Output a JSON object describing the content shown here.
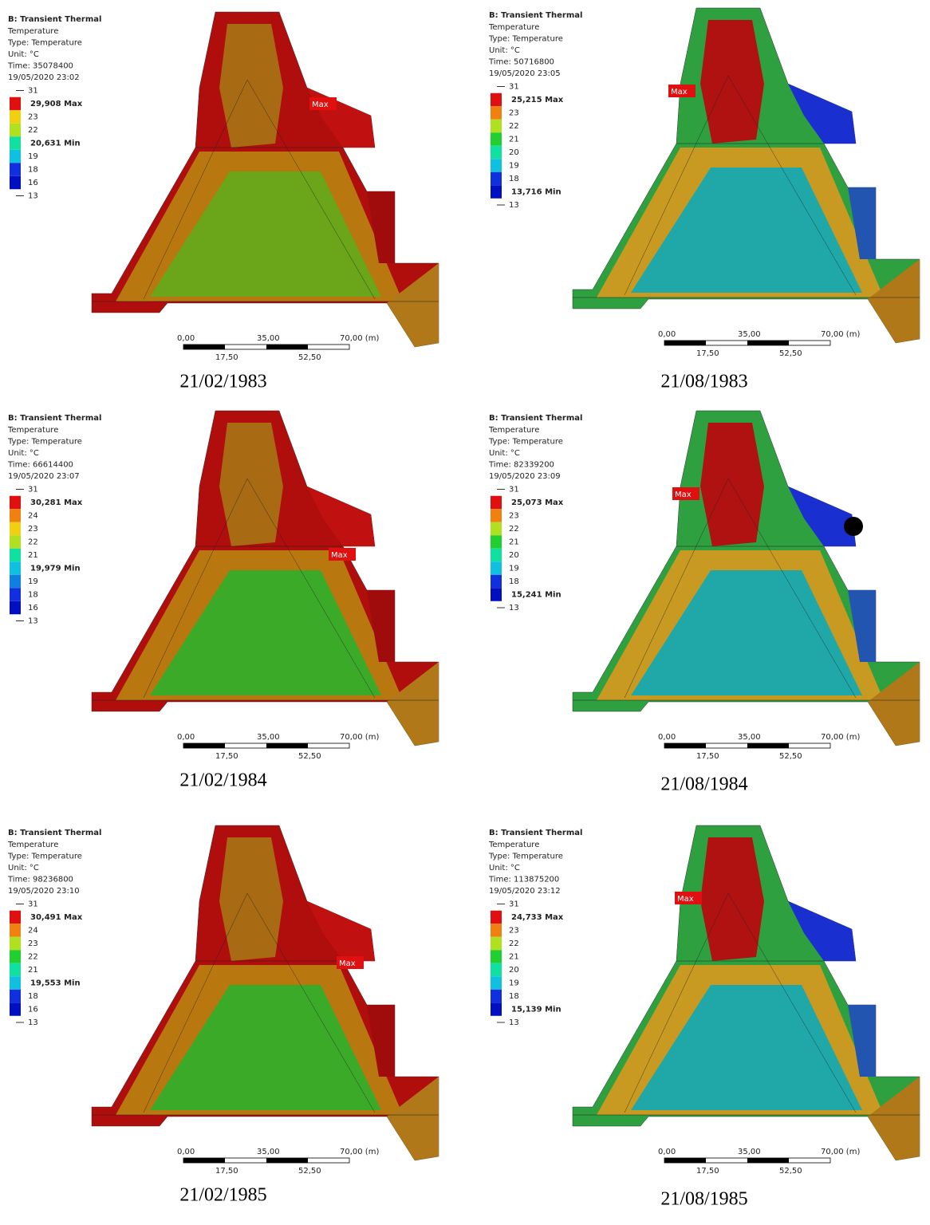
{
  "panels": [
    {
      "title": "B: Transient Thermal",
      "info": [
        "Temperature",
        "Type: Temperature",
        "Unit: °C",
        "Time: 35078400",
        "19/05/2020 23:02"
      ],
      "legend": [
        "31",
        "29,908 Max",
        "23",
        "22",
        "20,631 Min",
        "19",
        "18",
        "16",
        "13"
      ],
      "max_tag": "Max",
      "scale": [
        "0,00",
        "35,00",
        "70,00 (m)",
        "17,50",
        "52,50"
      ],
      "caption": "21/02/1983"
    },
    {
      "title": "B: Transient Thermal",
      "info": [
        "Temperature",
        "Type: Temperature",
        "Unit: °C",
        "Time: 50716800",
        "19/05/2020 23:05"
      ],
      "legend": [
        "31",
        "25,215 Max",
        "23",
        "22",
        "21",
        "20",
        "19",
        "18",
        "13,716 Min",
        "13"
      ],
      "max_tag": "Max",
      "scale": [
        "0,00",
        "35,00",
        "70,00 (m)",
        "17,50",
        "52,50"
      ],
      "caption": "21/08/1983"
    },
    {
      "title": "B: Transient Thermal",
      "info": [
        "Temperature",
        "Type: Temperature",
        "Unit: °C",
        "Time: 66614400",
        "19/05/2020 23:07"
      ],
      "legend": [
        "31",
        "30,281 Max",
        "24",
        "23",
        "22",
        "21",
        "19,979 Min",
        "19",
        "18",
        "16",
        "13"
      ],
      "max_tag": "Max",
      "scale": [
        "0,00",
        "35,00",
        "70,00 (m)",
        "17,50",
        "52,50"
      ],
      "caption": "21/02/1984"
    },
    {
      "title": "B: Transient Thermal",
      "info": [
        "Temperature",
        "Type: Temperature",
        "Unit: °C",
        "Time: 82339200",
        "19/05/2020 23:09"
      ],
      "legend": [
        "31",
        "25,073 Max",
        "23",
        "22",
        "21",
        "20",
        "19",
        "18",
        "15,241 Min",
        "13"
      ],
      "max_tag": "Max",
      "scale": [
        "0,00",
        "35,00",
        "70,00 (m)",
        "17,50",
        "52,50"
      ],
      "caption": "21/08/1984"
    },
    {
      "title": "B: Transient Thermal",
      "info": [
        "Temperature",
        "Type: Temperature",
        "Unit: °C",
        "Time: 98236800",
        "19/05/2020 23:10"
      ],
      "legend": [
        "31",
        "30,491 Max",
        "24",
        "23",
        "22",
        "21",
        "19,553 Min",
        "18",
        "16",
        "13"
      ],
      "max_tag": "Max",
      "scale": [
        "0,00",
        "35,00",
        "70,00 (m)",
        "17,50",
        "52,50"
      ],
      "caption": "21/02/1985"
    },
    {
      "title": "B: Transient Thermal",
      "info": [
        "Temperature",
        "Type: Temperature",
        "Unit: °C",
        "Time: 113875200",
        "19/05/2020 23:12"
      ],
      "legend": [
        "31",
        "24,733 Max",
        "23",
        "22",
        "21",
        "20",
        "19",
        "18",
        "15,139 Min",
        "13"
      ],
      "max_tag": "Max",
      "scale": [
        "0,00",
        "35,00",
        "70,00 (m)",
        "17,50",
        "52,50"
      ],
      "caption": "21/08/1985"
    }
  ]
}
